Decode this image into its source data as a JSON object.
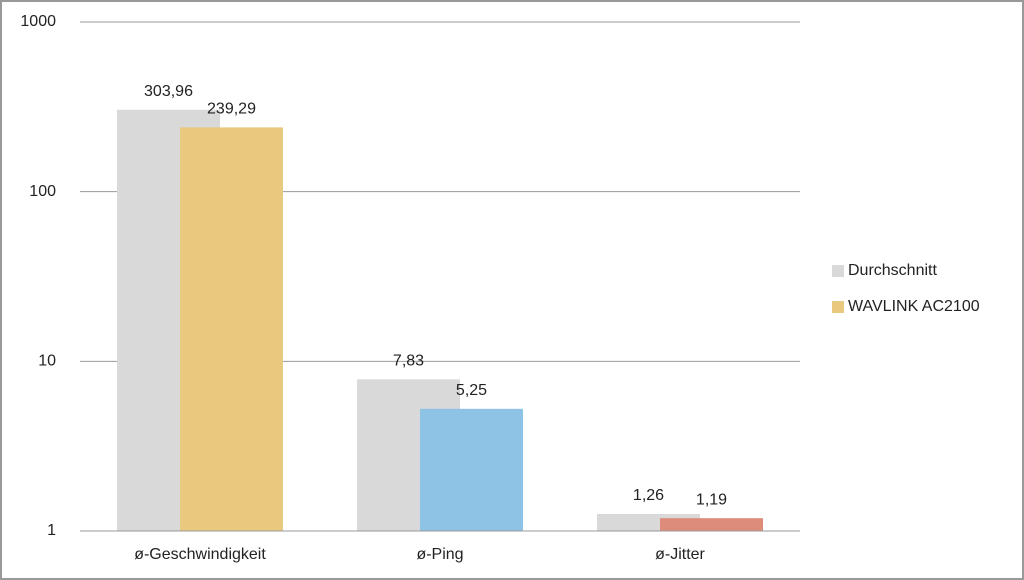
{
  "chart_data": {
    "type": "bar",
    "log_scale": true,
    "grid": true,
    "legend_position": "right",
    "categories": [
      "ø-Geschwindigkeit",
      "ø-Ping",
      "ø-Jitter"
    ],
    "series": [
      {
        "name": "Durchschnitt",
        "color": "#d9d9d9",
        "values": [
          303.96,
          7.83,
          1.26
        ],
        "value_labels": [
          "303,96",
          "7,83",
          "1,26"
        ]
      },
      {
        "name": "WAVLINK AC2100",
        "color": "#e8c97e",
        "colors": [
          "#e8c97e",
          "#8ec3e6",
          "#de8c7a"
        ],
        "values": [
          239.29,
          5.25,
          1.19
        ],
        "value_labels": [
          "239,29",
          "5,25",
          "1,19"
        ]
      }
    ],
    "ylim": [
      1,
      1000
    ],
    "yticks": [
      1,
      10,
      100,
      1000
    ]
  }
}
